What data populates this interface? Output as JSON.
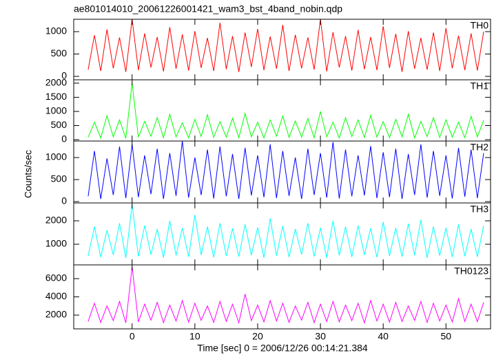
{
  "title": "ae801014010_20061226001421_wam3_bst_4band_nobin.qdp",
  "y_label": "Counts/sec",
  "x_label": "Time [sec] 0 = 2006/12/26 00:14:21.384",
  "chart_data": [
    {
      "type": "line",
      "xlim": [
        -9.3,
        57.1
      ],
      "xticks": [
        0,
        10,
        20,
        30,
        40,
        50
      ],
      "ylim": [
        -77,
        1277
      ],
      "yticks": [
        0,
        500,
        1000
      ],
      "series": [
        {
          "name": "TH0",
          "color": "#ff0000",
          "x": [
            -7,
            -6,
            -5,
            -4,
            -3,
            -2,
            -1,
            0,
            1,
            2,
            3,
            4,
            5,
            6,
            7,
            8,
            9,
            10,
            11,
            12,
            13,
            14,
            15,
            16,
            17,
            18,
            19,
            20,
            21,
            22,
            23,
            24,
            25,
            26,
            27,
            28,
            29,
            30,
            31,
            32,
            33,
            34,
            35,
            36,
            37,
            38,
            39,
            40,
            41,
            42,
            43,
            44,
            45,
            46,
            47,
            48,
            49,
            50,
            51,
            52,
            53,
            54,
            55,
            56
          ],
          "values": [
            150,
            920,
            120,
            1050,
            180,
            870,
            100,
            1277,
            140,
            960,
            200,
            880,
            110,
            1100,
            170,
            940,
            130,
            1010,
            190,
            860,
            120,
            1200,
            160,
            900,
            100,
            980,
            210,
            1060,
            140,
            890,
            170,
            1150,
            120,
            930,
            180,
            870,
            150,
            1277,
            110,
            990,
            200,
            900,
            130,
            1040,
            160,
            880,
            140,
            1120,
            190,
            950,
            100,
            1010,
            170,
            860,
            150,
            980,
            120,
            1080,
            180,
            910,
            140,
            960,
            130,
            1000
          ]
        }
      ]
    },
    {
      "type": "line",
      "xlim": [
        -9.3,
        57.1
      ],
      "xticks": [
        0,
        10,
        20,
        30,
        40,
        50
      ],
      "ylim": [
        -48,
        2119
      ],
      "yticks": [
        0,
        500,
        1000,
        1500,
        2000
      ],
      "series": [
        {
          "name": "TH1",
          "color": "#00ff00",
          "x": [
            -7,
            -6,
            -5,
            -4,
            -3,
            -2,
            -1,
            0,
            1,
            2,
            3,
            4,
            5,
            6,
            7,
            8,
            9,
            10,
            11,
            12,
            13,
            14,
            15,
            16,
            17,
            18,
            19,
            20,
            21,
            22,
            23,
            24,
            25,
            26,
            27,
            28,
            29,
            30,
            31,
            32,
            33,
            34,
            35,
            36,
            37,
            38,
            39,
            40,
            41,
            42,
            43,
            44,
            45,
            46,
            47,
            48,
            49,
            50,
            51,
            52,
            53,
            54,
            55,
            56
          ],
          "values": [
            80,
            620,
            60,
            850,
            100,
            700,
            50,
            2000,
            90,
            650,
            120,
            780,
            70,
            900,
            100,
            600,
            60,
            720,
            110,
            880,
            80,
            640,
            90,
            760,
            70,
            930,
            100,
            620,
            60,
            700,
            120,
            840,
            80,
            660,
            90,
            750,
            70,
            1000,
            100,
            620,
            60,
            780,
            110,
            700,
            80,
            860,
            90,
            640,
            70,
            720,
            100,
            900,
            60,
            650,
            110,
            780,
            80,
            700,
            90,
            620,
            70,
            830,
            100,
            690
          ]
        }
      ]
    },
    {
      "type": "line",
      "xlim": [
        -9.3,
        57.1
      ],
      "xticks": [
        0,
        10,
        20,
        30,
        40,
        50
      ],
      "ylim": [
        -31,
        1375
      ],
      "yticks": [
        0,
        500,
        1000
      ],
      "series": [
        {
          "name": "TH2",
          "color": "#0000ff",
          "x": [
            -7,
            -6,
            -5,
            -4,
            -3,
            -2,
            -1,
            0,
            1,
            2,
            3,
            4,
            5,
            6,
            7,
            8,
            9,
            10,
            11,
            12,
            13,
            14,
            15,
            16,
            17,
            18,
            19,
            20,
            21,
            22,
            23,
            24,
            25,
            26,
            27,
            28,
            29,
            30,
            31,
            32,
            33,
            34,
            35,
            36,
            37,
            38,
            39,
            40,
            41,
            42,
            43,
            44,
            45,
            46,
            47,
            48,
            49,
            50,
            51,
            52,
            53,
            54,
            55,
            56
          ],
          "values": [
            120,
            1150,
            60,
            980,
            150,
            1250,
            80,
            1300,
            100,
            1050,
            170,
            1200,
            60,
            1100,
            130,
            1375,
            90,
            1000,
            150,
            1180,
            70,
            1250,
            120,
            1080,
            60,
            1220,
            140,
            1050,
            100,
            1300,
            80,
            1150,
            130,
            1000,
            60,
            1200,
            150,
            1100,
            90,
            1350,
            70,
            1180,
            120,
            1050,
            140,
            1260,
            80,
            1120,
            100,
            1200,
            60,
            1080,
            150,
            1300,
            90,
            1150,
            130,
            1050,
            70,
            1220,
            110,
            1180,
            80,
            1100
          ]
        }
      ]
    },
    {
      "type": "line",
      "xlim": [
        -9.3,
        57.1
      ],
      "xticks": [
        0,
        10,
        20,
        30,
        40,
        50
      ],
      "ylim": [
        118,
        2765
      ],
      "yticks": [
        1000,
        2000
      ],
      "series": [
        {
          "name": "TH3",
          "color": "#00ffff",
          "x": [
            -7,
            -6,
            -5,
            -4,
            -3,
            -2,
            -1,
            0,
            1,
            2,
            3,
            4,
            5,
            6,
            7,
            8,
            9,
            10,
            11,
            12,
            13,
            14,
            15,
            16,
            17,
            18,
            19,
            20,
            21,
            22,
            23,
            24,
            25,
            26,
            27,
            28,
            29,
            30,
            31,
            32,
            33,
            34,
            35,
            36,
            37,
            38,
            39,
            40,
            41,
            42,
            43,
            44,
            45,
            46,
            47,
            48,
            49,
            50,
            51,
            52,
            53,
            54,
            55,
            56
          ],
          "values": [
            500,
            1750,
            450,
            1600,
            550,
            1900,
            420,
            2700,
            480,
            1800,
            560,
            1650,
            430,
            2000,
            520,
            1700,
            460,
            2250,
            540,
            1750,
            440,
            1900,
            500,
            1680,
            470,
            1850,
            530,
            1720,
            420,
            2100,
            510,
            1780,
            450,
            1650,
            560,
            1900,
            480,
            1700,
            430,
            2000,
            520,
            1750,
            460,
            1800,
            540,
            1680,
            440,
            1950,
            500,
            1700,
            470,
            1880,
            530,
            2050,
            420,
            1760,
            510,
            1700,
            450,
            1850,
            490,
            1650,
            460,
            1800
          ]
        }
      ]
    },
    {
      "type": "line",
      "xlim": [
        -9.3,
        57.1
      ],
      "xticks": [
        0,
        10,
        20,
        30,
        40,
        50
      ],
      "ylim": [
        491,
        7509
      ],
      "yticks": [
        2000,
        4000,
        6000
      ],
      "series": [
        {
          "name": "TH0123",
          "color": "#ff00ff",
          "x": [
            -7,
            -6,
            -5,
            -4,
            -3,
            -2,
            -1,
            0,
            1,
            2,
            3,
            4,
            5,
            6,
            7,
            8,
            9,
            10,
            11,
            12,
            13,
            14,
            15,
            16,
            17,
            18,
            19,
            20,
            21,
            22,
            23,
            24,
            25,
            26,
            27,
            28,
            29,
            30,
            31,
            32,
            33,
            34,
            35,
            36,
            37,
            38,
            39,
            40,
            41,
            42,
            43,
            44,
            45,
            46,
            47,
            48,
            49,
            50,
            51,
            52,
            53,
            54,
            55,
            56
          ],
          "values": [
            1300,
            3300,
            1200,
            3000,
            1400,
            3500,
            1150,
            7300,
            1250,
            3200,
            1450,
            3400,
            1180,
            3100,
            1350,
            3600,
            1220,
            3300,
            1420,
            3000,
            1200,
            3500,
            1300,
            3200,
            1150,
            4300,
            1400,
            3100,
            1250,
            3600,
            1350,
            3300,
            1200,
            3000,
            1450,
            3400,
            1180,
            3200,
            1300,
            3500,
            1250,
            3100,
            1400,
            3300,
            1150,
            3600,
            1350,
            3200,
            1220,
            3400,
            1300,
            3000,
            1420,
            3500,
            1200,
            3300,
            1350,
            3100,
            1250,
            3800,
            1300,
            3200,
            1280,
            3400
          ]
        }
      ]
    }
  ]
}
